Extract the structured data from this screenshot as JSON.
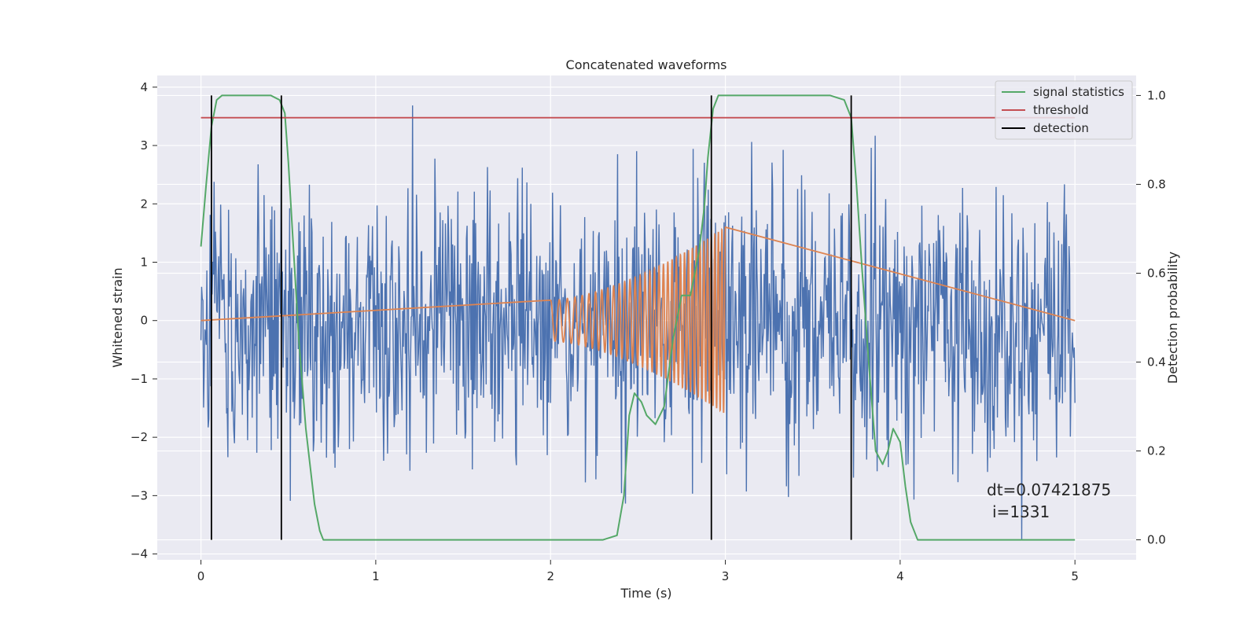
{
  "chart_data": {
    "type": "line",
    "title": "Concatenated waveforms",
    "xlabel": "Time (s)",
    "ylabel": "Whitened strain",
    "y2label": "Detection probability",
    "xlim": [
      -0.25,
      5.35
    ],
    "ylim": [
      -4.1,
      4.2
    ],
    "y2lim": [
      -0.045,
      1.045
    ],
    "x_ticks": [
      "0",
      "1",
      "2",
      "3",
      "4",
      "5"
    ],
    "y_ticks": [
      "4",
      "3",
      "2",
      "1",
      "0",
      "−1",
      "−2",
      "−3",
      "−4"
    ],
    "y2_ticks": [
      "1.0",
      "0.8",
      "0.6",
      "0.4",
      "0.2",
      "0.0"
    ],
    "grid": true,
    "legend_position": "top-right",
    "colors": {
      "strain": "#4c72b0",
      "injected": "#dd8452",
      "signal_statistics": "#55a868",
      "threshold": "#c44e52",
      "detection": "#000000"
    },
    "legend": [
      "signal statistics",
      "threshold",
      "detection"
    ],
    "series": [
      {
        "name": "signal statistics",
        "axis": "right",
        "x": [
          0.0,
          0.03,
          0.06,
          0.09,
          0.12,
          0.16,
          0.2,
          0.3,
          0.4,
          0.45,
          0.48,
          0.5,
          0.53,
          0.56,
          0.6,
          0.65,
          0.68,
          0.7,
          0.73,
          0.9,
          1.1,
          1.5,
          2.0,
          2.3,
          2.38,
          2.42,
          2.45,
          2.48,
          2.52,
          2.55,
          2.6,
          2.65,
          2.7,
          2.75,
          2.8,
          2.85,
          2.88,
          2.9,
          2.93,
          2.96,
          3.0,
          3.3,
          3.6,
          3.68,
          3.72,
          3.75,
          3.78,
          3.82,
          3.86,
          3.9,
          3.93,
          3.96,
          4.0,
          4.03,
          4.06,
          4.1,
          4.5,
          5.0
        ],
        "values": [
          0.66,
          0.8,
          0.93,
          0.99,
          1.0,
          1.0,
          1.0,
          1.0,
          1.0,
          0.99,
          0.96,
          0.85,
          0.65,
          0.45,
          0.25,
          0.08,
          0.02,
          0.0,
          0.0,
          0.0,
          0.0,
          0.0,
          0.0,
          0.0,
          0.01,
          0.1,
          0.28,
          0.33,
          0.31,
          0.28,
          0.26,
          0.3,
          0.45,
          0.55,
          0.55,
          0.65,
          0.75,
          0.86,
          0.97,
          1.0,
          1.0,
          1.0,
          1.0,
          0.99,
          0.95,
          0.8,
          0.62,
          0.4,
          0.2,
          0.17,
          0.2,
          0.25,
          0.22,
          0.12,
          0.04,
          0.0,
          0.0,
          0.0
        ]
      },
      {
        "name": "threshold",
        "axis": "right",
        "x": [
          0.0,
          5.0
        ],
        "values": [
          0.95,
          0.95
        ]
      },
      {
        "name": "detection",
        "axis": "right",
        "type": "vlines",
        "x": [
          0.06,
          0.46,
          2.92,
          3.72
        ],
        "range": [
          0.0,
          1.0
        ]
      },
      {
        "name": "",
        "axis": "left",
        "type": "noise",
        "x_range": [
          0.0,
          5.0
        ],
        "samples": 1331,
        "approx_std": 0.75,
        "approx_min": -3.75,
        "approx_max": 3.75
      },
      {
        "name": "",
        "axis": "left",
        "type": "chirp",
        "x_range": [
          2.0,
          3.0
        ],
        "amplitude_start": 0.35,
        "amplitude_end": 1.6,
        "cycles": 35
      }
    ],
    "annotation": {
      "line1": "dt=0.07421875",
      "line2": "i=1331",
      "x": 4.5,
      "y": -3.0
    }
  }
}
